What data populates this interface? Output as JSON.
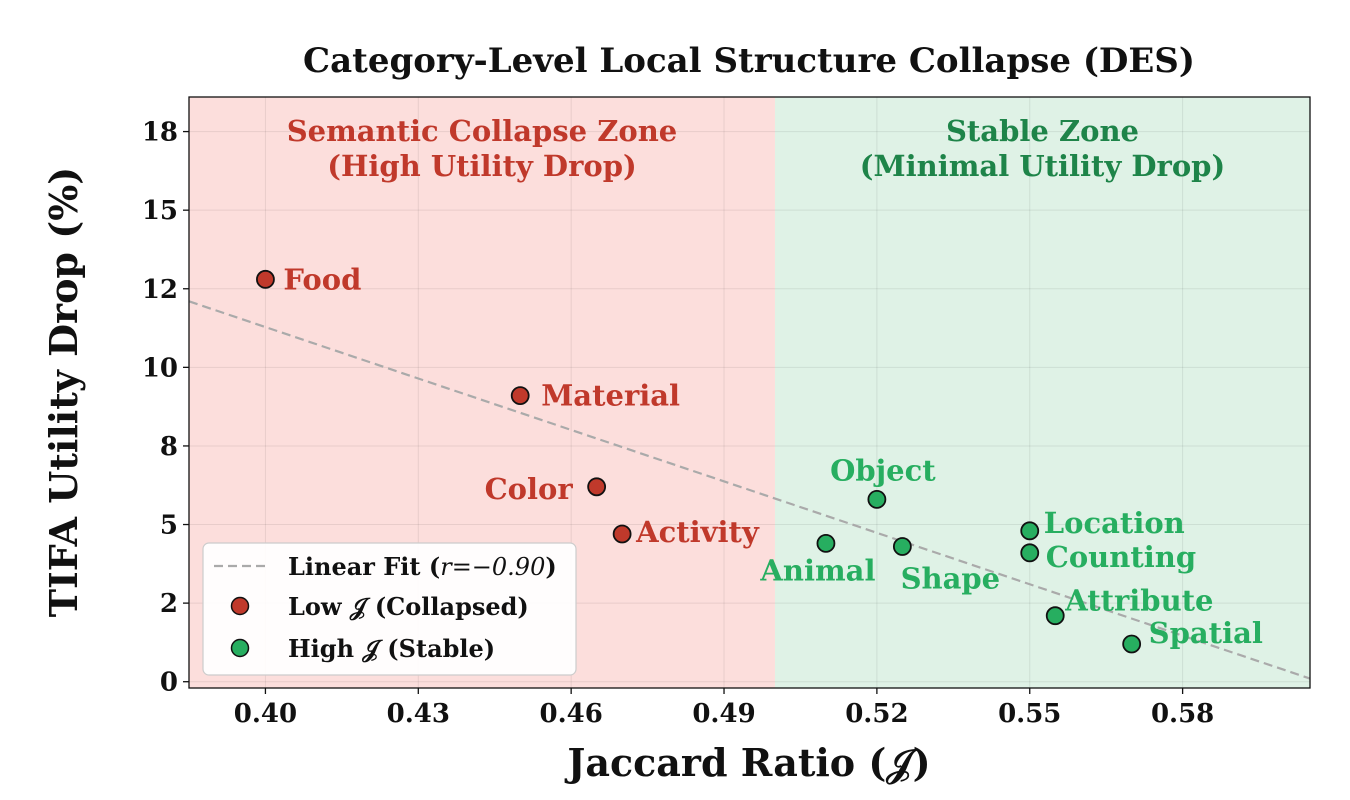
{
  "chart_data": {
    "type": "scatter",
    "title": "Category-Level Local Structure Collapse (DES)",
    "xlabel": "Jaccard Ratio (𝒥)",
    "ylabel": "TIFA Utility Drop (%)",
    "xlim": [
      0.385,
      0.605
    ],
    "ylim": [
      -0.2,
      18.6
    ],
    "x_ticks": [
      0.4,
      0.43,
      0.46,
      0.49,
      0.52,
      0.55,
      0.58
    ],
    "x_tick_labels": [
      "0.40",
      "0.43",
      "0.46",
      "0.49",
      "0.52",
      "0.55",
      "0.58"
    ],
    "y_ticks": [
      0,
      2.5,
      5,
      7.5,
      10,
      12.5,
      15,
      17.5
    ],
    "y_tick_labels": [
      "0",
      "2",
      "5",
      "8",
      "10",
      "12",
      "15",
      "18"
    ],
    "grid": true,
    "threshold_x": 0.5,
    "zones": [
      {
        "name": "collapse",
        "line1": "Semantic Collapse Zone",
        "line2": "(High Utility Drop)",
        "color": "#fcdedc",
        "text_color": "#c0392b"
      },
      {
        "name": "stable",
        "line1": "Stable Zone",
        "line2": "(Minimal Utility Drop)",
        "color": "#dff2e6",
        "text_color": "#1e8449"
      }
    ],
    "series": [
      {
        "name": "Low 𝒥 (Collapsed)",
        "color": "#c0392b",
        "label_color": "#c0392b",
        "points": [
          {
            "label": "Food",
            "x": 0.4,
            "y": 12.8
          },
          {
            "label": "Material",
            "x": 0.45,
            "y": 9.1
          },
          {
            "label": "Color",
            "x": 0.465,
            "y": 6.2
          },
          {
            "label": "Activity",
            "x": 0.47,
            "y": 4.7
          }
        ]
      },
      {
        "name": "High 𝒥 (Stable)",
        "color": "#27ae60",
        "label_color": "#27ae60",
        "points": [
          {
            "label": "Object",
            "x": 0.52,
            "y": 5.8
          },
          {
            "label": "Animal",
            "x": 0.51,
            "y": 4.4
          },
          {
            "label": "Shape",
            "x": 0.525,
            "y": 4.3
          },
          {
            "label": "Location",
            "x": 0.55,
            "y": 4.8
          },
          {
            "label": "Counting",
            "x": 0.55,
            "y": 4.1
          },
          {
            "label": "Attribute",
            "x": 0.555,
            "y": 2.1
          },
          {
            "label": "Spatial",
            "x": 0.57,
            "y": 1.2
          }
        ]
      }
    ],
    "fit": {
      "label": "Linear Fit (r=−0.90)",
      "label_prefix": "Linear Fit (",
      "r_text": "r=−0.90",
      "label_suffix": ")",
      "x": [
        0.385,
        0.605
      ],
      "y": [
        12.1,
        0.1
      ],
      "color": "#aaaaaa"
    },
    "legend": {
      "placement": "lower-left",
      "entries": [
        "Linear Fit (r=−0.90)",
        "Low 𝒥 (Collapsed)",
        "High 𝒥 (Stable)"
      ]
    }
  }
}
